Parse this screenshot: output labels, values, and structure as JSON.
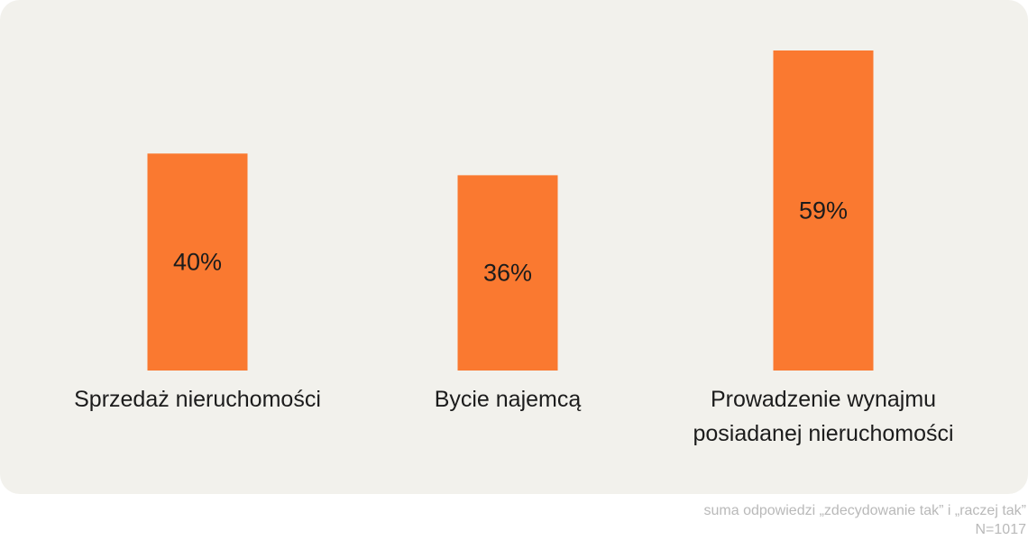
{
  "colors": {
    "bar": "#fa7930",
    "background": "#f2f1ec",
    "text": "#1c1c1c",
    "footnote": "#b9b9b9"
  },
  "chart_data": {
    "type": "bar",
    "categories": [
      [
        "Sprzedaż nieruchomości"
      ],
      [
        "Bycie najemcą"
      ],
      [
        "Prowadzenie wynajmu",
        "posiadanej nieruchomości"
      ]
    ],
    "values": [
      40,
      36,
      59
    ],
    "data_labels": [
      "40%",
      "36%",
      "59%"
    ],
    "unit": "%",
    "title": "",
    "xlabel": "",
    "ylabel": "",
    "ylim": [
      0,
      59
    ],
    "grid": false,
    "legend": "none"
  },
  "footnote": {
    "line1": "suma odpowiedzi „zdecydowanie tak” i „raczej tak”",
    "line2": "N=1017"
  }
}
